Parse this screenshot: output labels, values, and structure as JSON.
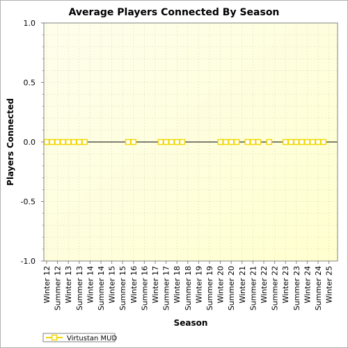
{
  "chart_data": {
    "type": "line",
    "title": "Average Players Connected By Season",
    "xlabel": "Season",
    "ylabel": "Players Connected",
    "ylim": [
      -1.0,
      1.0
    ],
    "yticks": [
      "1.0",
      "0.5",
      "0.0",
      "-0.5",
      "-1.0"
    ],
    "categories": [
      "Winter 12",
      "Summer 12",
      "Winter 13",
      "Summer 13",
      "Winter 14",
      "Summer 14",
      "Winter 15",
      "Summer 15",
      "Winter 16",
      "Summer 16",
      "Winter 17",
      "Summer 17",
      "Winter 18",
      "Summer 18",
      "Winter 19",
      "Summer 19",
      "Winter 20",
      "Summer 20",
      "Winter 21",
      "Summer 21",
      "Winter 22",
      "Summer 22",
      "Winter 23",
      "Summer 23",
      "Winter 24",
      "Summer 24",
      "Winter 25"
    ],
    "series": [
      {
        "name": "Virtustan MUD",
        "color": "#f0d800",
        "marker": "square",
        "points": [
          {
            "x": 0.0,
            "y": 0
          },
          {
            "x": 0.5,
            "y": 0
          },
          {
            "x": 1.0,
            "y": 0
          },
          {
            "x": 1.5,
            "y": 0
          },
          {
            "x": 2.0,
            "y": 0
          },
          {
            "x": 2.5,
            "y": 0
          },
          {
            "x": 3.0,
            "y": 0
          },
          {
            "x": 3.5,
            "y": 0
          },
          {
            "x": 7.5,
            "y": 0
          },
          {
            "x": 8.0,
            "y": 0
          },
          {
            "x": 10.5,
            "y": 0
          },
          {
            "x": 11.0,
            "y": 0
          },
          {
            "x": 11.5,
            "y": 0
          },
          {
            "x": 12.0,
            "y": 0
          },
          {
            "x": 12.5,
            "y": 0
          },
          {
            "x": 16.0,
            "y": 0
          },
          {
            "x": 16.5,
            "y": 0
          },
          {
            "x": 17.0,
            "y": 0
          },
          {
            "x": 17.5,
            "y": 0
          },
          {
            "x": 18.5,
            "y": 0
          },
          {
            "x": 19.0,
            "y": 0
          },
          {
            "x": 19.5,
            "y": 0
          },
          {
            "x": 20.5,
            "y": 0
          },
          {
            "x": 22.0,
            "y": 0
          },
          {
            "x": 22.5,
            "y": 0
          },
          {
            "x": 23.0,
            "y": 0
          },
          {
            "x": 23.5,
            "y": 0
          },
          {
            "x": 24.0,
            "y": 0
          },
          {
            "x": 24.5,
            "y": 0
          },
          {
            "x": 25.0,
            "y": 0
          },
          {
            "x": 25.5,
            "y": 0
          }
        ]
      }
    ],
    "grid": true,
    "legend_position": "bottom-left",
    "plot_background": "#fffff0"
  }
}
